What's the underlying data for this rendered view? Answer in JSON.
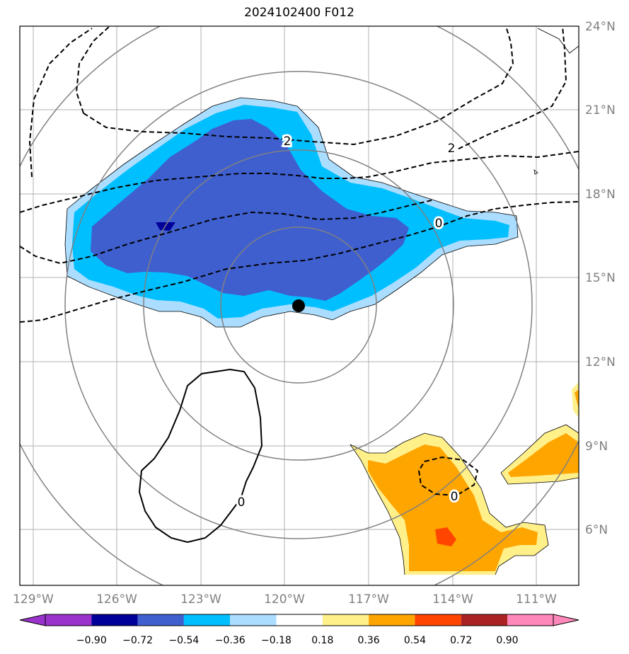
{
  "title": "2024102400 F012",
  "colors": {
    "ocean": "#ffffff",
    "grid": "#b0b0b0",
    "range_ring": "#808080",
    "axis_label": "#808080",
    "frame": "#000000"
  },
  "lon_ticks": [
    "129°W",
    "126°W",
    "123°W",
    "120°W",
    "117°W",
    "114°W",
    "111°W"
  ],
  "lat_ticks": [
    "24°N",
    "21°N",
    "18°N",
    "15°N",
    "12°N",
    "9°N",
    "6°N"
  ],
  "center_marker": {
    "lon": -119.5,
    "lat": 14.0
  },
  "colorbar": {
    "bounds": [
      "−0.90",
      "−0.72",
      "−0.54",
      "−0.36",
      "−0.18",
      "0.18",
      "0.36",
      "0.54",
      "0.72",
      "0.90"
    ],
    "colors": [
      "#9933cc",
      "#000099",
      "#3f5fcf",
      "#00bfff",
      "#aaddff",
      "#ffffff",
      "#fff08a",
      "#ffa500",
      "#ff4500",
      "#aa2222",
      "#ff88bb"
    ]
  },
  "contour_labels": [
    "2",
    "2",
    "0",
    "0",
    "0"
  ]
}
